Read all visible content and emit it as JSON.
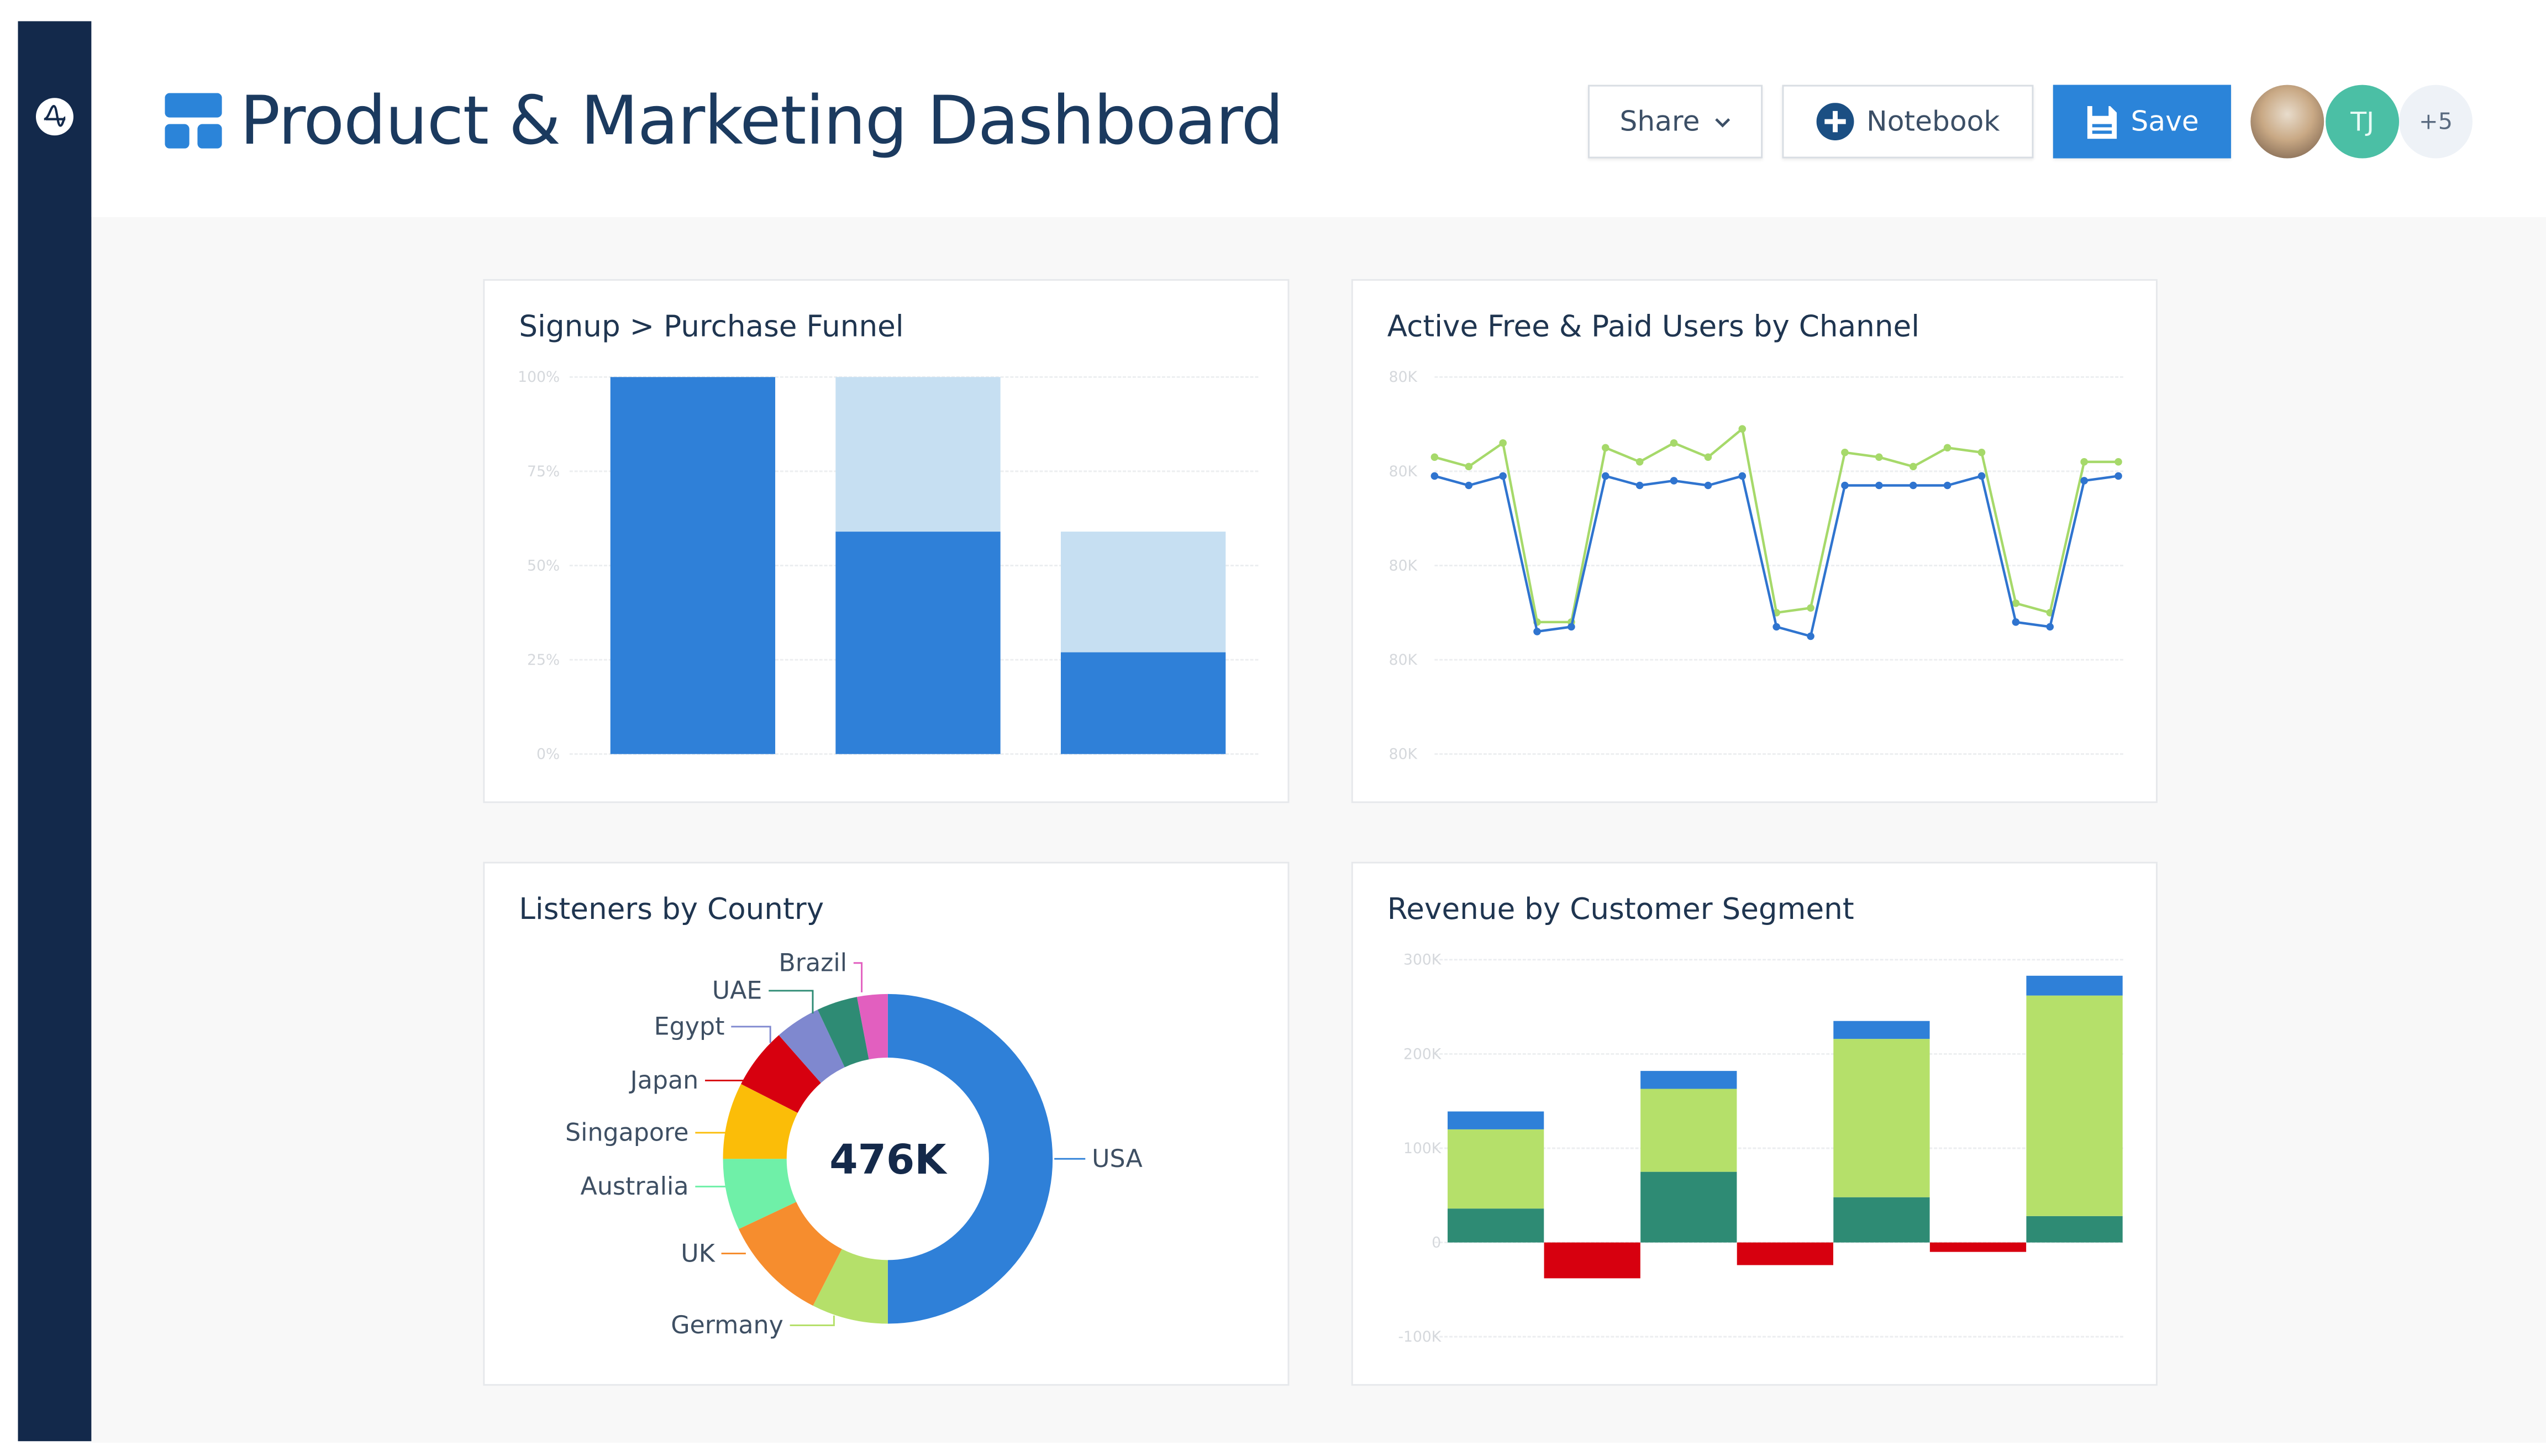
{
  "header": {
    "title": "Product & Marketing Dashboard",
    "share_label": "Share",
    "notebook_label": "Notebook",
    "save_label": "Save",
    "avatars": [
      {
        "type": "photo"
      },
      {
        "initials": "TJ",
        "color": "#4bbfa5"
      },
      {
        "initials": "+5"
      }
    ]
  },
  "colors": {
    "sidebar": "#13294b",
    "accent": "#2b84d9",
    "title": "#1b3a5f"
  },
  "cards": [
    {
      "title": "Signup > Purchase Funnel"
    },
    {
      "title": "Active Free & Paid Users by Channel"
    },
    {
      "title": "Listeners by Country"
    },
    {
      "title": "Revenue by Customer Segment"
    }
  ],
  "chart_data": [
    {
      "type": "bar",
      "stacked": true,
      "title": "Signup > Purchase Funnel",
      "yticks": [
        "100%",
        "75%",
        "50%",
        "25%",
        "0%"
      ],
      "ylim": [
        0,
        100
      ],
      "grid": true,
      "categories": [
        "",
        "",
        ""
      ],
      "series": [
        {
          "values": [
            100,
            59,
            27
          ],
          "color": "#2f80d8"
        },
        {
          "values": [
            0,
            41,
            32
          ],
          "color": "#c6dff2"
        }
      ]
    },
    {
      "type": "line",
      "title": "Active Free & Paid Users by Channel",
      "yticks": [
        "80K",
        "80K",
        "80K",
        "80K",
        "80K"
      ],
      "grid": true,
      "series": [
        {
          "color": "#a6d96a",
          "values": [
            63,
            61,
            66,
            28,
            28,
            65,
            62,
            66,
            63,
            69,
            30,
            31,
            64,
            63,
            61,
            65,
            64,
            32,
            30,
            62,
            62
          ]
        },
        {
          "color": "#2f74cf",
          "values": [
            59,
            57,
            59,
            26,
            27,
            59,
            57,
            58,
            57,
            59,
            27,
            25,
            57,
            57,
            57,
            57,
            59,
            28,
            27,
            58,
            59
          ]
        }
      ]
    },
    {
      "type": "pie",
      "donut": true,
      "title": "Listeners by Country",
      "center_label": "476K",
      "slices": [
        {
          "label": "USA",
          "value": 50,
          "color": "#2f80d8"
        },
        {
          "label": "Germany",
          "value": 7.5,
          "color": "#b5e06a"
        },
        {
          "label": "UK",
          "value": 10.5,
          "color": "#f68d2e"
        },
        {
          "label": "Australia",
          "value": 7,
          "color": "#6ff0a8"
        },
        {
          "label": "Singapore",
          "value": 7.5,
          "color": "#fbbd08"
        },
        {
          "label": "Japan",
          "value": 6,
          "color": "#d7000f"
        },
        {
          "label": "Egypt",
          "value": 4.5,
          "color": "#7f88cf"
        },
        {
          "label": "UAE",
          "value": 4,
          "color": "#2e8b74"
        },
        {
          "label": "Brazil",
          "value": 3,
          "color": "#e25fbf"
        }
      ]
    },
    {
      "type": "bar",
      "stacked": true,
      "title": "Revenue by Customer Segment",
      "yticks": [
        "300K",
        "200K",
        "100K",
        "0",
        "-100K"
      ],
      "ylim": [
        -100000,
        300000
      ],
      "grid": true,
      "series": [
        {
          "color": "#2e8b74",
          "values": [
            36000,
            null,
            75000,
            null,
            48000,
            null,
            28000
          ]
        },
        {
          "color": "#b5e06a",
          "values": [
            84000,
            null,
            88000,
            null,
            168000,
            null,
            234000
          ]
        },
        {
          "color": "#2f80d8",
          "values": [
            19000,
            null,
            19000,
            null,
            19000,
            null,
            21000
          ]
        },
        {
          "color": "#d7000f",
          "values": [
            null,
            -38000,
            null,
            -24000,
            null,
            -10000,
            null
          ]
        }
      ]
    }
  ]
}
